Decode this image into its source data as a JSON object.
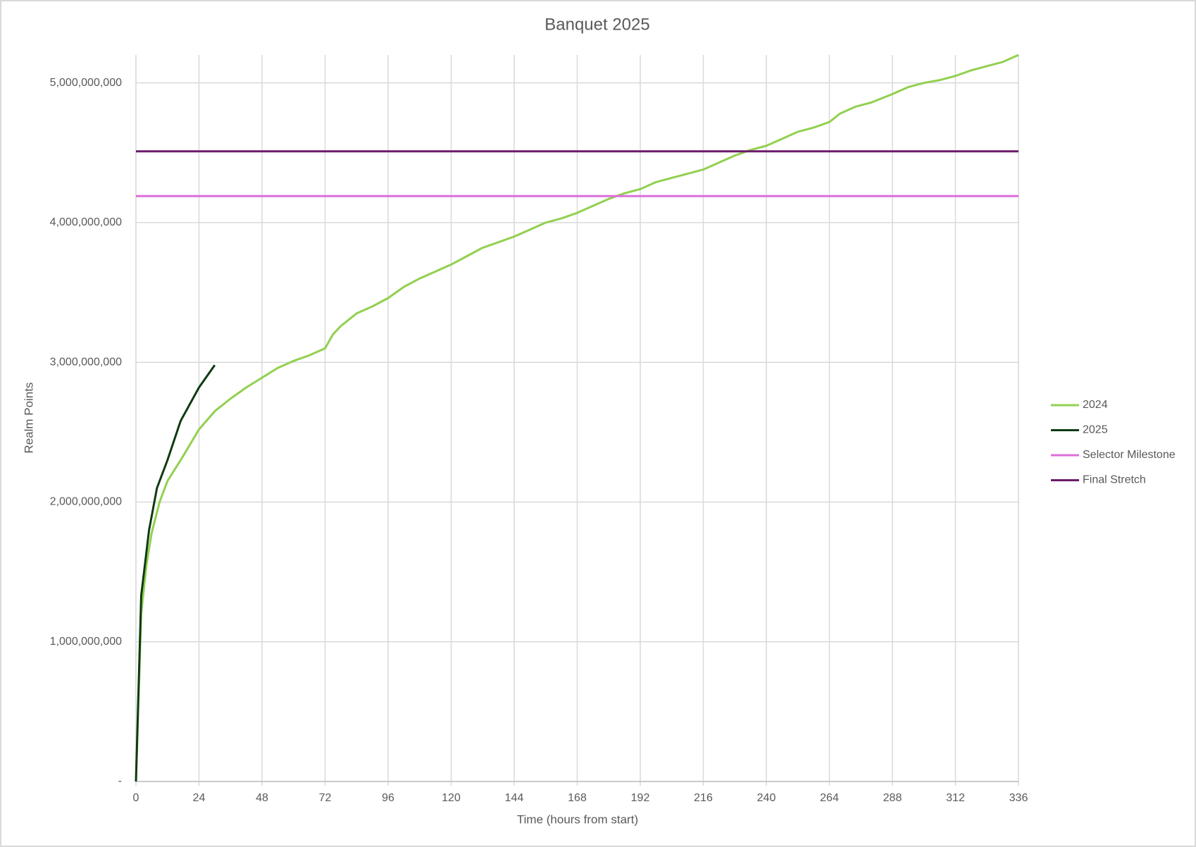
{
  "chart_data": {
    "type": "line",
    "title": "Banquet 2025",
    "xlabel": "Time (hours from start)",
    "ylabel": "Realm Points",
    "xlim": [
      0,
      336
    ],
    "xticks": [
      0,
      24,
      48,
      72,
      96,
      120,
      144,
      168,
      192,
      216,
      240,
      264,
      288,
      312,
      336
    ],
    "ylim": [
      0,
      5200000000
    ],
    "yticks": [
      {
        "value": 0,
        "label": "-"
      },
      {
        "value": 1000000000,
        "label": "1,000,000,000"
      },
      {
        "value": 2000000000,
        "label": "2,000,000,000"
      },
      {
        "value": 3000000000,
        "label": "3,000,000,000"
      },
      {
        "value": 4000000000,
        "label": "4,000,000,000"
      },
      {
        "value": 5000000000,
        "label": "5,000,000,000"
      }
    ],
    "grid": true,
    "legend": "right",
    "series": [
      {
        "name": "2024",
        "color": "#92d050",
        "x": [
          0,
          2,
          4,
          6,
          9,
          12,
          18,
          24,
          30,
          36,
          42,
          48,
          54,
          60,
          66,
          72,
          75,
          78,
          84,
          90,
          96,
          102,
          108,
          114,
          120,
          126,
          132,
          138,
          144,
          150,
          156,
          162,
          168,
          174,
          180,
          186,
          192,
          198,
          204,
          210,
          216,
          222,
          228,
          234,
          240,
          246,
          252,
          258,
          264,
          268,
          274,
          280,
          288,
          294,
          300,
          306,
          312,
          318,
          324,
          330,
          336
        ],
        "values": [
          0,
          1200000000,
          1550000000,
          1780000000,
          2000000000,
          2150000000,
          2330000000,
          2520000000,
          2650000000,
          2740000000,
          2820000000,
          2890000000,
          2960000000,
          3010000000,
          3050000000,
          3100000000,
          3200000000,
          3260000000,
          3350000000,
          3400000000,
          3460000000,
          3540000000,
          3600000000,
          3650000000,
          3700000000,
          3760000000,
          3820000000,
          3860000000,
          3900000000,
          3950000000,
          4000000000,
          4030000000,
          4070000000,
          4120000000,
          4170000000,
          4210000000,
          4240000000,
          4290000000,
          4320000000,
          4350000000,
          4380000000,
          4430000000,
          4480000000,
          4520000000,
          4550000000,
          4600000000,
          4650000000,
          4680000000,
          4720000000,
          4780000000,
          4830000000,
          4860000000,
          4920000000,
          4970000000,
          5000000000,
          5020000000,
          5050000000,
          5090000000,
          5120000000,
          5150000000,
          5200000000
        ]
      },
      {
        "name": "2025",
        "color": "#0f3b12",
        "x": [
          0,
          2,
          5,
          8,
          12,
          17,
          24,
          30
        ],
        "values": [
          0,
          1330000000,
          1800000000,
          2100000000,
          2300000000,
          2580000000,
          2820000000,
          2980000000
        ]
      },
      {
        "name": "Selector Milestone",
        "color": "#dc6fdc",
        "x": [
          0,
          336
        ],
        "values": [
          4190000000,
          4190000000
        ]
      },
      {
        "name": "Final Stretch",
        "color": "#6b1a6b",
        "x": [
          0,
          336
        ],
        "values": [
          4510000000,
          4510000000
        ]
      }
    ]
  }
}
